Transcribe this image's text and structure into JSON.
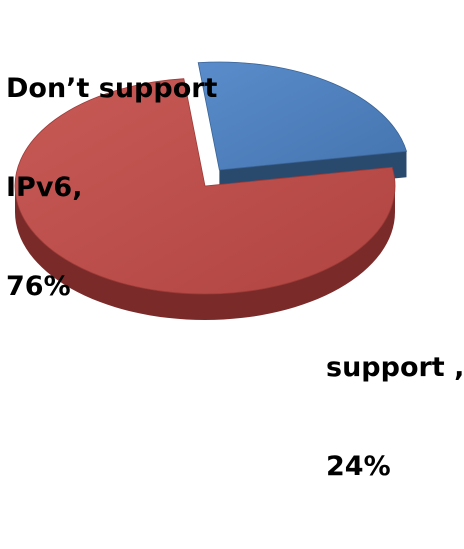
{
  "chart_data": {
    "type": "pie",
    "three_d": true,
    "exploded_slice": "support",
    "legend": "none",
    "slices": [
      {
        "category": "Don’t support IPv6",
        "value": 76,
        "label_lines": [
          "Don’t support",
          "IPv6,",
          "76%"
        ],
        "color": "#c0504d",
        "side_color": "#7a2b29"
      },
      {
        "category": "support",
        "value": 24,
        "label_lines": [
          "support ,",
          "24%"
        ],
        "color": "#4f81bd",
        "side_color": "#2a4a6d"
      }
    ]
  }
}
